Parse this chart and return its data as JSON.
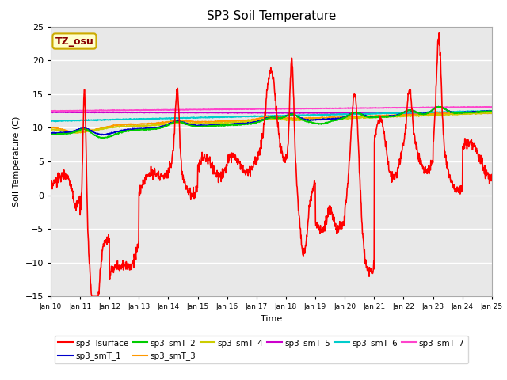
{
  "title": "SP3 Soil Temperature",
  "ylabel": "Soil Temperature (C)",
  "xlabel": "Time",
  "ylim": [
    -15,
    25
  ],
  "xlim": [
    0,
    15
  ],
  "tz_label": "TZ_osu",
  "bg_color": "#e8e8e8",
  "series_colors": {
    "sp3_Tsurface": "#ff0000",
    "sp3_smT_1": "#0000cc",
    "sp3_smT_2": "#00cc00",
    "sp3_smT_3": "#ff9900",
    "sp3_smT_4": "#cccc00",
    "sp3_smT_5": "#cc00cc",
    "sp3_smT_6": "#00cccc",
    "sp3_smT_7": "#ff44cc"
  },
  "xtick_labels": [
    "Jan 10",
    "Jan 11",
    "Jan 12",
    "Jan 13",
    "Jan 14",
    "Jan 15",
    "Jan 16",
    "Jan 17",
    "Jan 18",
    "Jan 19",
    "Jan 20",
    "Jan 21",
    "Jan 22",
    "Jan 23",
    "Jan 24",
    "Jan 25"
  ],
  "xtick_positions": [
    0,
    1,
    2,
    3,
    4,
    5,
    6,
    7,
    8,
    9,
    10,
    11,
    12,
    13,
    14,
    15
  ],
  "ytick_positions": [
    -15,
    -10,
    -5,
    0,
    5,
    10,
    15,
    20,
    25
  ],
  "figsize": [
    6.4,
    4.8
  ],
  "dpi": 100
}
